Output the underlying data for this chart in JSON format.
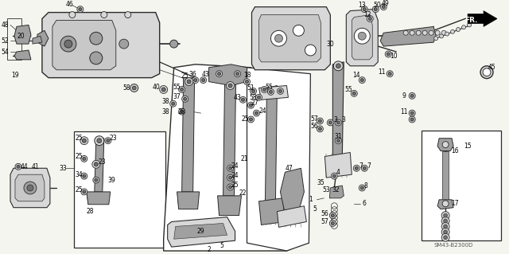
{
  "fig_width": 6.4,
  "fig_height": 3.19,
  "dpi": 100,
  "background_color": "#f5f5f0",
  "line_color": "#2a2a2a",
  "text_color": "#000000",
  "diagram_code": "SM43-B2300D",
  "fr_label": "FR.",
  "gray_part": "#888888",
  "gray_light": "#c8c8c8",
  "gray_med": "#a0a0a0",
  "gray_dark": "#707070",
  "gray_fill": "#d8d8d8",
  "white": "#ffffff"
}
